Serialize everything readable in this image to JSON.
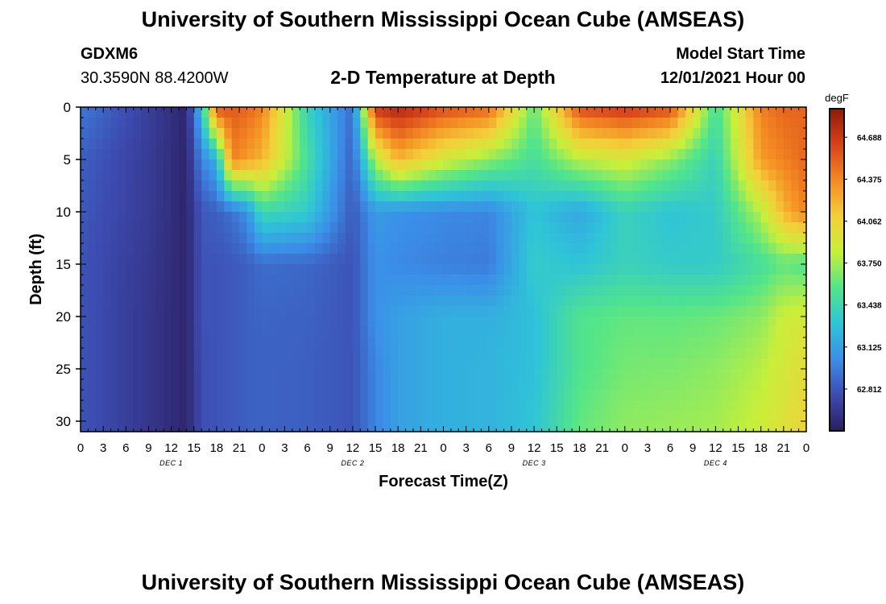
{
  "header": {
    "main_title": "University of Southern Mississippi Ocean Cube (AMSEAS)",
    "station_id": "GDXM6",
    "station_coords": "30.3590N  88.4200W",
    "plot_title": "2-D Temperature at Depth",
    "start_label": "Model Start Time",
    "start_value": "12/01/2021 Hour 00"
  },
  "footer": {
    "title": "University of Southern Mississippi Ocean Cube (AMSEAS)"
  },
  "chart_data": {
    "type": "heatmap",
    "title": "2-D Temperature at Depth",
    "xlabel": "Forecast Time(Z)",
    "ylabel": "Depth (ft)",
    "x_hours_range": [
      0,
      96
    ],
    "x_tick_labels": [
      "0",
      "3",
      "6",
      "9",
      "12",
      "15",
      "18",
      "21",
      "0",
      "3",
      "6",
      "9",
      "12",
      "15",
      "18",
      "21",
      "0",
      "3",
      "6",
      "9",
      "12",
      "15",
      "18",
      "21",
      "0",
      "3",
      "6",
      "9",
      "12",
      "15",
      "18",
      "21",
      "0"
    ],
    "day_labels": [
      "DEC 1",
      "DEC 2",
      "DEC 3",
      "DEC 4"
    ],
    "ylim": [
      0,
      31
    ],
    "y_ticks": [
      0,
      5,
      10,
      15,
      20,
      25,
      30
    ],
    "y_tick_labels": [
      "0",
      "5",
      "10",
      "15",
      "20",
      "25",
      "30"
    ],
    "y_inverted": true,
    "colorbar": {
      "unit": "degF",
      "ticks": [
        "64.688",
        "64.375",
        "64.062",
        "63.750",
        "63.438",
        "63.125",
        "62.812"
      ],
      "tick_values": [
        64.688,
        64.375,
        64.062,
        63.75,
        63.438,
        63.125,
        62.812
      ],
      "range": [
        62.5,
        64.9
      ],
      "colors": [
        "#2b1d5e",
        "#3d4bb0",
        "#3b8ee8",
        "#2fc4d8",
        "#52e58a",
        "#c8ef3a",
        "#f4cf3a",
        "#f48a22",
        "#d8421a",
        "#8c1a0a"
      ]
    },
    "depth_values": [
      0,
      5,
      10,
      15,
      20,
      25,
      30
    ],
    "hour_values": [
      0,
      9,
      14,
      16,
      18,
      20,
      22,
      24,
      30,
      36,
      39,
      42,
      48,
      54,
      60,
      66,
      72,
      78,
      84,
      90,
      93,
      96
    ],
    "temperature_grid": [
      [
        62.95,
        62.7,
        62.55,
        63.3,
        64.6,
        64.55,
        64.5,
        64.4,
        63.4,
        62.9,
        64.7,
        64.8,
        64.6,
        64.5,
        63.6,
        64.6,
        64.7,
        64.6,
        63.5,
        64.4,
        64.5,
        64.5
      ],
      [
        62.85,
        62.68,
        62.55,
        63.0,
        63.2,
        64.4,
        64.3,
        64.2,
        63.5,
        62.85,
        63.8,
        64.2,
        63.9,
        63.7,
        63.5,
        63.8,
        63.9,
        63.7,
        63.4,
        64.3,
        64.4,
        64.5
      ],
      [
        62.82,
        62.68,
        62.55,
        62.82,
        62.85,
        62.92,
        63.05,
        63.45,
        63.35,
        62.82,
        63.1,
        63.05,
        63.02,
        63.0,
        63.3,
        63.15,
        63.4,
        63.3,
        63.35,
        63.8,
        64.2,
        64.4
      ],
      [
        62.8,
        62.66,
        62.55,
        62.8,
        62.8,
        62.82,
        62.85,
        62.9,
        62.88,
        62.8,
        63.05,
        63.02,
        62.98,
        62.96,
        63.35,
        63.3,
        63.4,
        63.35,
        63.35,
        63.5,
        63.6,
        63.55
      ],
      [
        62.8,
        62.65,
        62.55,
        62.8,
        62.8,
        62.82,
        62.85,
        62.87,
        62.86,
        62.8,
        63.05,
        63.12,
        63.2,
        63.2,
        63.28,
        63.55,
        63.6,
        63.6,
        63.62,
        63.7,
        63.85,
        63.9
      ],
      [
        62.8,
        62.65,
        62.55,
        62.78,
        62.8,
        62.82,
        62.85,
        62.86,
        62.85,
        62.8,
        63.0,
        63.12,
        63.2,
        63.22,
        63.28,
        63.55,
        63.65,
        63.66,
        63.7,
        63.8,
        63.9,
        64.0
      ],
      [
        62.8,
        62.65,
        62.55,
        62.78,
        62.8,
        62.82,
        62.85,
        62.86,
        62.85,
        62.8,
        63.0,
        63.12,
        63.2,
        63.22,
        63.3,
        63.6,
        63.7,
        63.72,
        63.75,
        63.85,
        63.95,
        64.05
      ]
    ]
  }
}
